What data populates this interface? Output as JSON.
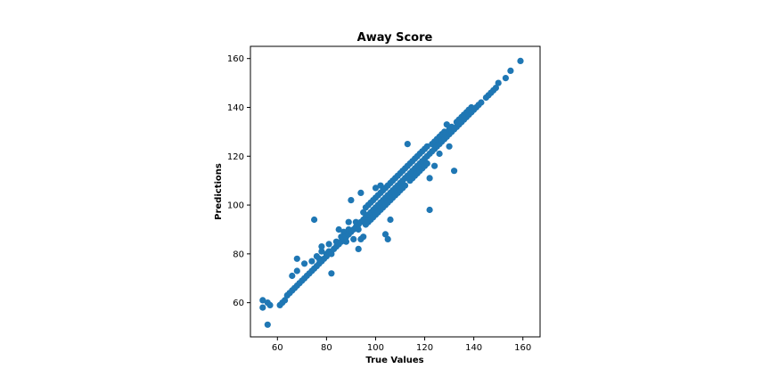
{
  "chart_data": {
    "type": "scatter",
    "title": "Away Score",
    "xlabel": "True Values",
    "ylabel": "Predictions",
    "xlim": [
      49,
      167
    ],
    "ylim": [
      46,
      165
    ],
    "xticks": [
      60,
      80,
      100,
      120,
      140,
      160
    ],
    "yticks": [
      60,
      80,
      100,
      120,
      140,
      160
    ],
    "grid": false,
    "marker_color": "#1f77b4",
    "series": [
      {
        "points": [
          [
            54,
            61
          ],
          [
            54,
            58
          ],
          [
            56,
            51
          ],
          [
            56,
            60
          ],
          [
            57,
            59
          ],
          [
            61,
            59
          ],
          [
            62,
            60
          ],
          [
            63,
            61
          ],
          [
            64,
            63
          ],
          [
            65,
            64
          ],
          [
            66,
            65
          ],
          [
            66,
            71
          ],
          [
            67,
            66
          ],
          [
            68,
            67
          ],
          [
            68,
            73
          ],
          [
            68,
            78
          ],
          [
            69,
            68
          ],
          [
            70,
            69
          ],
          [
            71,
            70
          ],
          [
            71,
            76
          ],
          [
            72,
            71
          ],
          [
            73,
            72
          ],
          [
            74,
            73
          ],
          [
            74,
            77
          ],
          [
            75,
            74
          ],
          [
            75,
            94
          ],
          [
            76,
            75
          ],
          [
            76,
            79
          ],
          [
            77,
            76
          ],
          [
            77,
            78
          ],
          [
            78,
            77
          ],
          [
            78,
            81
          ],
          [
            78,
            83
          ],
          [
            79,
            78
          ],
          [
            80,
            79
          ],
          [
            80,
            80
          ],
          [
            81,
            81
          ],
          [
            81,
            84
          ],
          [
            82,
            80
          ],
          [
            82,
            72
          ],
          [
            83,
            82
          ],
          [
            84,
            83
          ],
          [
            84,
            85
          ],
          [
            85,
            84
          ],
          [
            85,
            90
          ],
          [
            86,
            85
          ],
          [
            86,
            87
          ],
          [
            87,
            86
          ],
          [
            87,
            89
          ],
          [
            88,
            87
          ],
          [
            88,
            85
          ],
          [
            89,
            88
          ],
          [
            89,
            90
          ],
          [
            89,
            93
          ],
          [
            90,
            89
          ],
          [
            90,
            102
          ],
          [
            91,
            90
          ],
          [
            91,
            86
          ],
          [
            92,
            91
          ],
          [
            92,
            93
          ],
          [
            93,
            92
          ],
          [
            93,
            82
          ],
          [
            93,
            90
          ],
          [
            94,
            93
          ],
          [
            94,
            105
          ],
          [
            94,
            86
          ],
          [
            95,
            94
          ],
          [
            95,
            97
          ],
          [
            95,
            87
          ],
          [
            96,
            95
          ],
          [
            96,
            99
          ],
          [
            96,
            92
          ],
          [
            97,
            96
          ],
          [
            97,
            100
          ],
          [
            97,
            93
          ],
          [
            98,
            97
          ],
          [
            98,
            101
          ],
          [
            98,
            94
          ],
          [
            99,
            98
          ],
          [
            99,
            102
          ],
          [
            99,
            95
          ],
          [
            100,
            99
          ],
          [
            100,
            103
          ],
          [
            100,
            96
          ],
          [
            100,
            107
          ],
          [
            101,
            100
          ],
          [
            101,
            104
          ],
          [
            101,
            97
          ],
          [
            102,
            101
          ],
          [
            102,
            105
          ],
          [
            102,
            98
          ],
          [
            102,
            108
          ],
          [
            103,
            102
          ],
          [
            103,
            106
          ],
          [
            103,
            99
          ],
          [
            104,
            103
          ],
          [
            104,
            107
          ],
          [
            104,
            100
          ],
          [
            104,
            88
          ],
          [
            105,
            104
          ],
          [
            105,
            108
          ],
          [
            105,
            101
          ],
          [
            105,
            86
          ],
          [
            106,
            105
          ],
          [
            106,
            109
          ],
          [
            106,
            102
          ],
          [
            106,
            94
          ],
          [
            107,
            106
          ],
          [
            107,
            110
          ],
          [
            107,
            103
          ],
          [
            108,
            107
          ],
          [
            108,
            111
          ],
          [
            108,
            104
          ],
          [
            109,
            108
          ],
          [
            109,
            112
          ],
          [
            109,
            105
          ],
          [
            110,
            109
          ],
          [
            110,
            113
          ],
          [
            110,
            106
          ],
          [
            111,
            110
          ],
          [
            111,
            114
          ],
          [
            111,
            107
          ],
          [
            112,
            111
          ],
          [
            112,
            115
          ],
          [
            112,
            108
          ],
          [
            113,
            112
          ],
          [
            113,
            116
          ],
          [
            113,
            125
          ],
          [
            114,
            113
          ],
          [
            114,
            117
          ],
          [
            114,
            110
          ],
          [
            115,
            114
          ],
          [
            115,
            118
          ],
          [
            115,
            111
          ],
          [
            116,
            115
          ],
          [
            116,
            119
          ],
          [
            116,
            112
          ],
          [
            117,
            116
          ],
          [
            117,
            120
          ],
          [
            117,
            113
          ],
          [
            118,
            117
          ],
          [
            118,
            121
          ],
          [
            118,
            114
          ],
          [
            119,
            118
          ],
          [
            119,
            122
          ],
          [
            119,
            115
          ],
          [
            120,
            119
          ],
          [
            120,
            123
          ],
          [
            120,
            116
          ],
          [
            121,
            120
          ],
          [
            121,
            124
          ],
          [
            121,
            117
          ],
          [
            122,
            98
          ],
          [
            122,
            111
          ],
          [
            122,
            121
          ],
          [
            123,
            122
          ],
          [
            123,
            125
          ],
          [
            124,
            123
          ],
          [
            124,
            126
          ],
          [
            124,
            116
          ],
          [
            125,
            124
          ],
          [
            125,
            127
          ],
          [
            126,
            125
          ],
          [
            126,
            128
          ],
          [
            126,
            121
          ],
          [
            127,
            126
          ],
          [
            127,
            129
          ],
          [
            128,
            127
          ],
          [
            128,
            130
          ],
          [
            129,
            128
          ],
          [
            129,
            133
          ],
          [
            130,
            129
          ],
          [
            130,
            131
          ],
          [
            130,
            124
          ],
          [
            131,
            130
          ],
          [
            131,
            132
          ],
          [
            132,
            131
          ],
          [
            132,
            114
          ],
          [
            133,
            132
          ],
          [
            133,
            134
          ],
          [
            134,
            133
          ],
          [
            134,
            135
          ],
          [
            135,
            134
          ],
          [
            135,
            136
          ],
          [
            136,
            135
          ],
          [
            136,
            137
          ],
          [
            137,
            136
          ],
          [
            137,
            138
          ],
          [
            138,
            137
          ],
          [
            138,
            139
          ],
          [
            139,
            138
          ],
          [
            139,
            140
          ],
          [
            140,
            139
          ],
          [
            141,
            140
          ],
          [
            142,
            141
          ],
          [
            143,
            142
          ],
          [
            145,
            144
          ],
          [
            146,
            145
          ],
          [
            147,
            146
          ],
          [
            148,
            147
          ],
          [
            149,
            148
          ],
          [
            150,
            150
          ],
          [
            153,
            152
          ],
          [
            155,
            155
          ],
          [
            159,
            159
          ]
        ]
      }
    ]
  }
}
